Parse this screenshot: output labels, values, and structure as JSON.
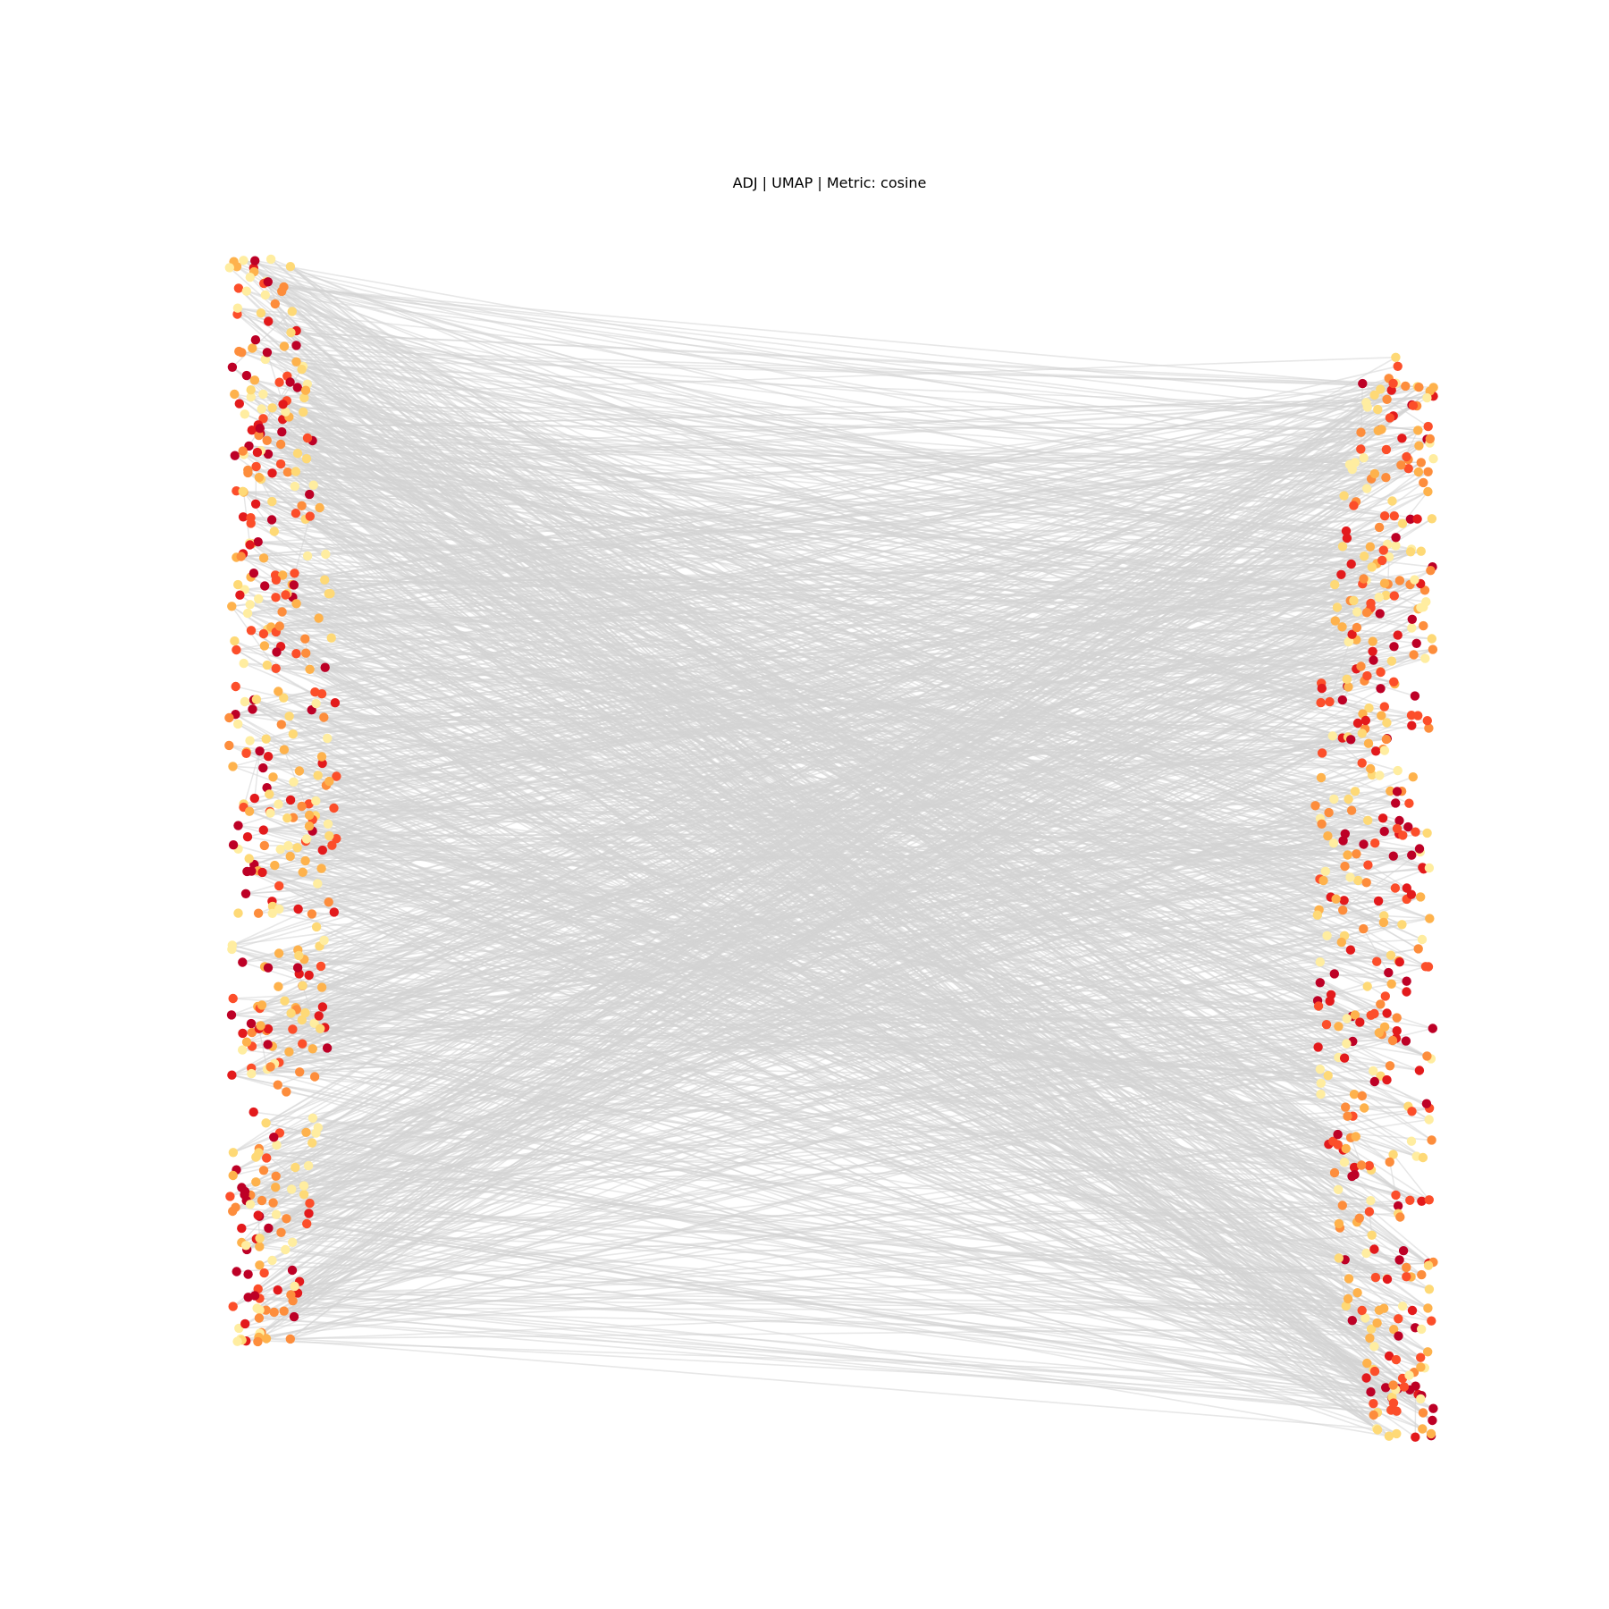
{
  "chart_data": {
    "type": "scatter",
    "subtype": "bipartite-network",
    "title": "ADJ | UMAP | Metric: cosine",
    "axes_visible": false,
    "grid": false,
    "legend": "none",
    "edge_color": "#d3d3d3",
    "colormap": "YlOrRd",
    "node_colors": [
      "#ffeda0",
      "#fed976",
      "#feb24c",
      "#fd8d3c",
      "#fc4e2a",
      "#e31a1c",
      "#bd0026"
    ],
    "groups": [
      {
        "side": "left",
        "x_range": [
          -1.05,
          -0.86
        ],
        "y_top": 1.0,
        "y_bottom": -0.9,
        "node_count": 420
      },
      {
        "side": "right",
        "x_range": [
          0.84,
          1.05
        ],
        "y_top": 0.84,
        "y_bottom": -1.06,
        "node_count": 440
      }
    ],
    "edge_count": 1400,
    "xlim": [
      -1.2,
      1.2
    ],
    "ylim": [
      -1.2,
      1.2
    ]
  }
}
